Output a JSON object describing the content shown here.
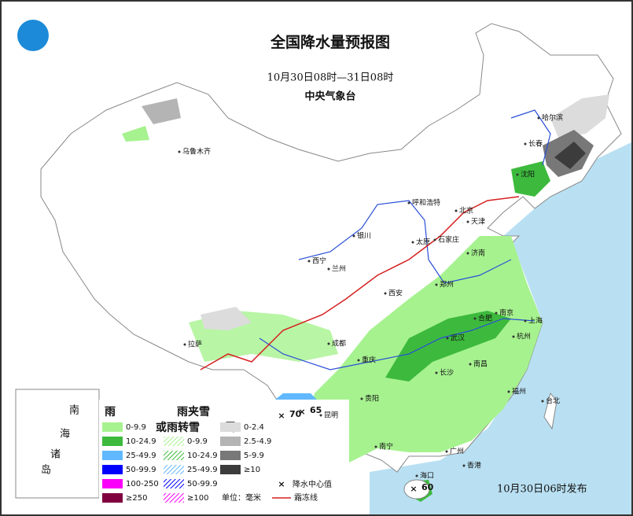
{
  "header": {
    "title": "全国降水量预报图",
    "subtitle": "10月30日08时—31日08时",
    "issuer": "中央气象台"
  },
  "cities": [
    "乌鲁木齐",
    "哈尔滨",
    "长春",
    "沈阳",
    "呼和浩特",
    "北京",
    "天津",
    "石家庄",
    "银川",
    "太原",
    "济南",
    "西宁",
    "兰州",
    "郑州",
    "西安",
    "合肥",
    "南京",
    "上海",
    "拉萨",
    "成都",
    "武汉",
    "杭州",
    "重庆",
    "长沙",
    "南昌",
    "贵阳",
    "福州",
    "台北",
    "昆明",
    "南宁",
    "广州",
    "香港",
    "海口"
  ],
  "precip_centers": [
    70,
    65,
    60
  ],
  "inset": [
    "南",
    "海",
    "诸",
    "岛"
  ],
  "legend": {
    "rain": {
      "title": "雨",
      "items": [
        {
          "label": "0-9.9",
          "color": "#a6f28f"
        },
        {
          "label": "10-24.9",
          "color": "#3dba3d"
        },
        {
          "label": "25-49.9",
          "color": "#61b8ff"
        },
        {
          "label": "50-99.9",
          "color": "#0000ff"
        },
        {
          "label": "100-250",
          "color": "#fa00fa"
        },
        {
          "label": "≥250",
          "color": "#800040"
        }
      ]
    },
    "sleet": {
      "title": "雨夹雪",
      "title2": "或雨转雪",
      "items": [
        {
          "label": "0-9.9",
          "color": "#a6f28f"
        },
        {
          "label": "10-24.9",
          "color": "#3dba3d"
        },
        {
          "label": "25-49.9",
          "color": "#61b8ff"
        },
        {
          "label": "50-99.9",
          "color": "#0000ff"
        },
        {
          "label": "≥100",
          "color": "#fa00fa"
        }
      ]
    },
    "snow": {
      "title": "雪",
      "items": [
        {
          "label": "0-2.4",
          "color": "#dcdcdc"
        },
        {
          "label": "2.5-4.9",
          "color": "#b4b4b4"
        },
        {
          "label": "5-9.9",
          "color": "#787878"
        },
        {
          "label": "≥10",
          "color": "#3c3c3c"
        }
      ]
    },
    "center_label": "降水中心值",
    "frost_label": "霜冻线",
    "unit": "单位：毫米"
  },
  "footer": "10月30日06时发布"
}
